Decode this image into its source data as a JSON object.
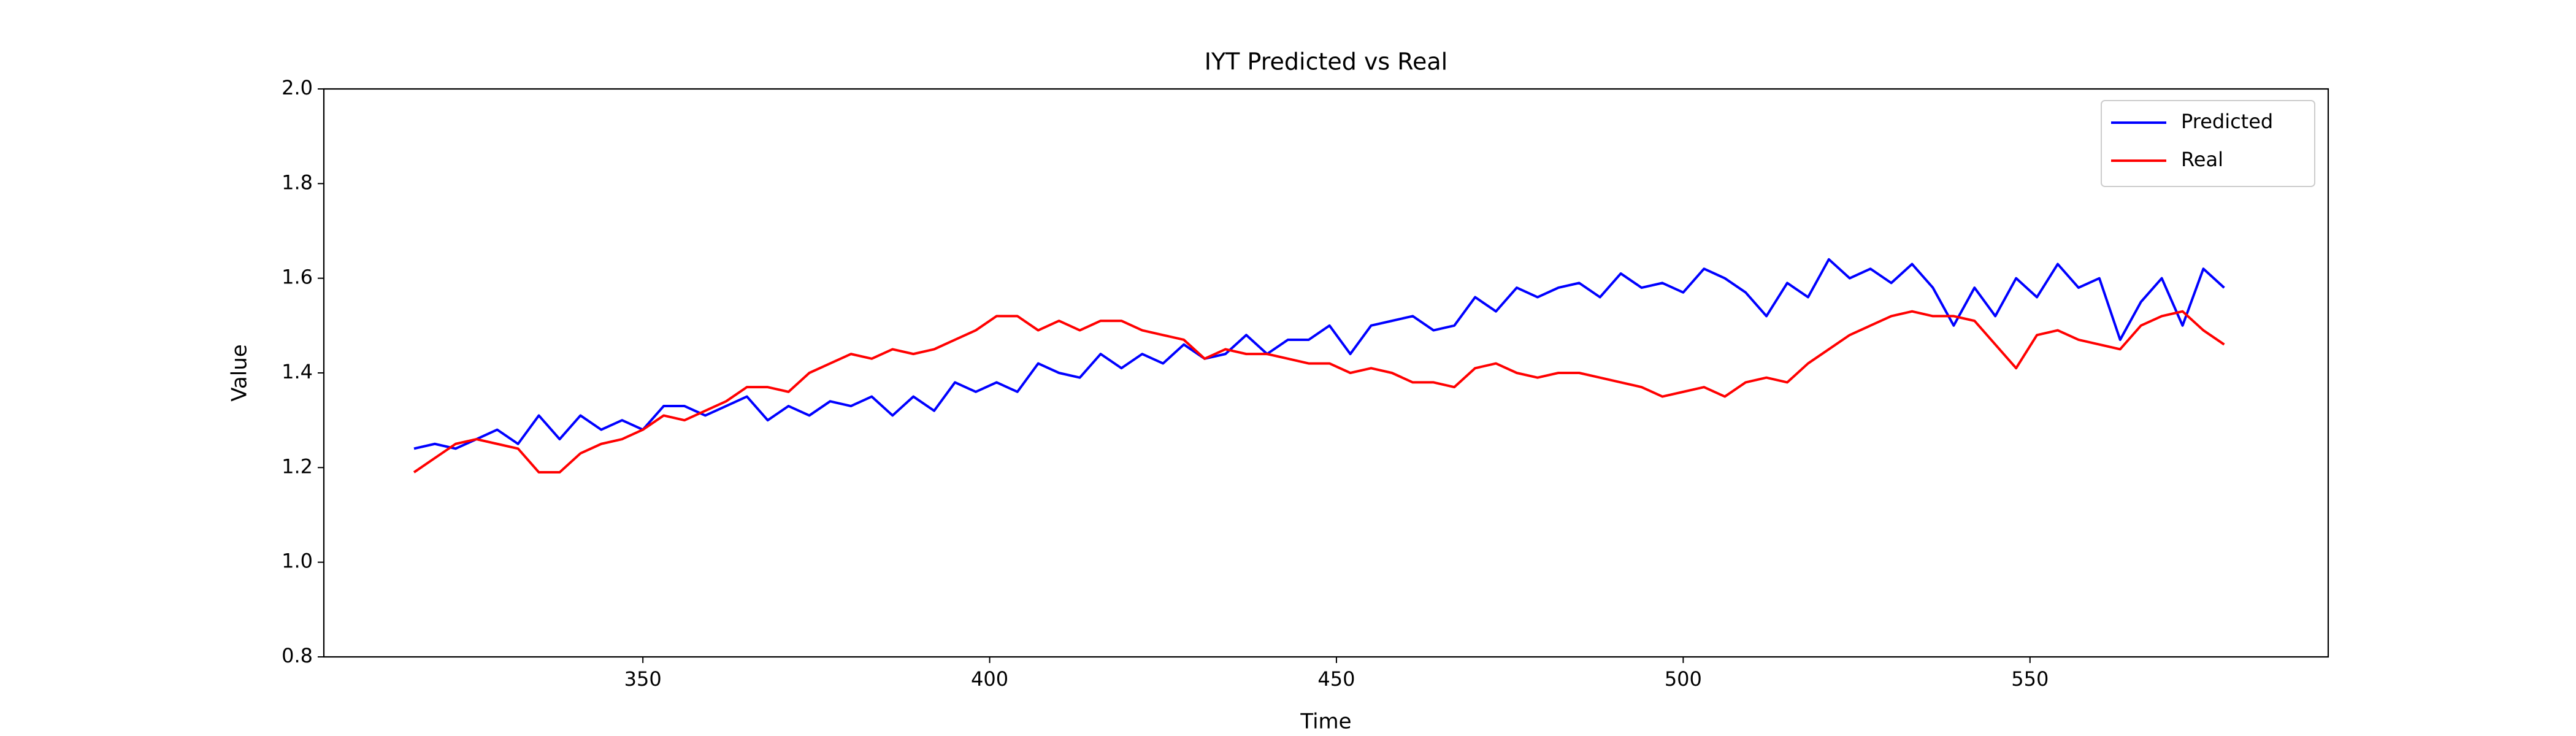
{
  "chart_data": {
    "type": "line",
    "title": "IYT Predicted vs Real",
    "xlabel": "Time",
    "ylabel": "Value",
    "x": [
      317,
      320,
      323,
      326,
      329,
      332,
      335,
      338,
      341,
      344,
      347,
      350,
      353,
      356,
      359,
      362,
      365,
      368,
      371,
      374,
      377,
      380,
      383,
      386,
      389,
      392,
      395,
      398,
      401,
      404,
      407,
      410,
      413,
      416,
      419,
      422,
      425,
      428,
      431,
      434,
      437,
      440,
      443,
      446,
      449,
      452,
      455,
      458,
      461,
      464,
      467,
      470,
      473,
      476,
      479,
      482,
      485,
      488,
      491,
      494,
      497,
      500,
      503,
      506,
      509,
      512,
      515,
      518,
      521,
      524,
      527,
      530,
      533,
      536,
      539,
      542,
      545,
      548,
      551,
      554,
      557,
      560,
      563,
      566,
      569,
      572,
      575,
      578
    ],
    "series": [
      {
        "name": "Predicted",
        "color": "#0000ff",
        "values": [
          1.24,
          1.25,
          1.24,
          1.26,
          1.28,
          1.25,
          1.31,
          1.26,
          1.31,
          1.28,
          1.3,
          1.28,
          1.33,
          1.33,
          1.31,
          1.33,
          1.35,
          1.3,
          1.33,
          1.31,
          1.34,
          1.33,
          1.35,
          1.31,
          1.35,
          1.32,
          1.38,
          1.36,
          1.38,
          1.36,
          1.42,
          1.4,
          1.39,
          1.44,
          1.41,
          1.44,
          1.42,
          1.46,
          1.43,
          1.44,
          1.48,
          1.44,
          1.47,
          1.47,
          1.5,
          1.44,
          1.5,
          1.51,
          1.52,
          1.49,
          1.5,
          1.56,
          1.53,
          1.58,
          1.56,
          1.58,
          1.59,
          1.56,
          1.61,
          1.58,
          1.59,
          1.57,
          1.62,
          1.6,
          1.57,
          1.52,
          1.59,
          1.56,
          1.64,
          1.6,
          1.62,
          1.59,
          1.63,
          1.58,
          1.5,
          1.58,
          1.52,
          1.6,
          1.56,
          1.63,
          1.58,
          1.6,
          1.47,
          1.55,
          1.6,
          1.5,
          1.62,
          1.58
        ]
      },
      {
        "name": "Real",
        "color": "#ff0000",
        "values": [
          1.19,
          1.22,
          1.25,
          1.26,
          1.25,
          1.24,
          1.19,
          1.19,
          1.23,
          1.25,
          1.26,
          1.28,
          1.31,
          1.3,
          1.32,
          1.34,
          1.37,
          1.37,
          1.36,
          1.4,
          1.42,
          1.44,
          1.43,
          1.45,
          1.44,
          1.45,
          1.47,
          1.49,
          1.52,
          1.52,
          1.49,
          1.51,
          1.49,
          1.51,
          1.51,
          1.49,
          1.48,
          1.47,
          1.43,
          1.45,
          1.44,
          1.44,
          1.43,
          1.42,
          1.42,
          1.4,
          1.41,
          1.4,
          1.38,
          1.38,
          1.37,
          1.41,
          1.42,
          1.4,
          1.39,
          1.4,
          1.4,
          1.39,
          1.38,
          1.37,
          1.35,
          1.36,
          1.37,
          1.35,
          1.38,
          1.39,
          1.38,
          1.42,
          1.45,
          1.48,
          1.5,
          1.52,
          1.53,
          1.52,
          1.52,
          1.51,
          1.46,
          1.41,
          1.48,
          1.49,
          1.47,
          1.46,
          1.45,
          1.5,
          1.52,
          1.53,
          1.49,
          1.46
        ]
      }
    ],
    "xlim": [
      304,
      593
    ],
    "xticks": [
      350,
      400,
      450,
      500,
      550
    ],
    "ylim": [
      0.8,
      2.0
    ],
    "yticks": [
      0.8,
      {
        "value": 1.0,
        "label": "1.0"
      },
      1.2,
      1.4,
      1.6,
      1.8,
      {
        "value": 2.0,
        "label": "2.0"
      }
    ],
    "legend": "upper right"
  }
}
